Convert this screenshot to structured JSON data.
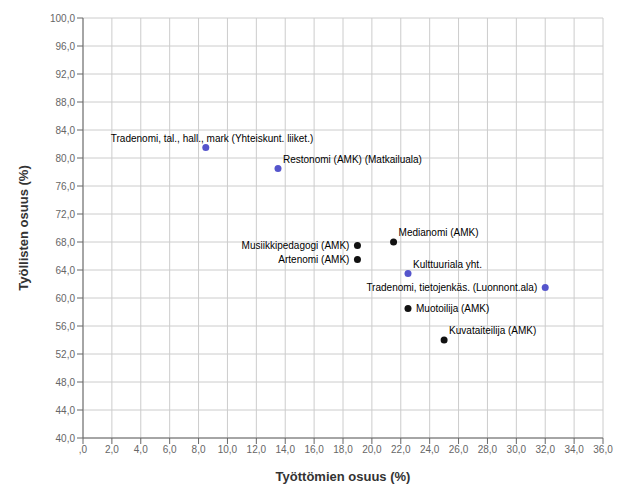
{
  "chart_data": {
    "type": "scatter",
    "x": [
      8.5,
      13.5,
      19.0,
      19.0,
      21.5,
      22.5,
      32.0,
      22.5,
      25.0
    ],
    "values": [
      81.5,
      78.5,
      67.5,
      65.5,
      68.0,
      63.5,
      61.5,
      58.5,
      54.0
    ],
    "labels": [
      "Tradenomi, tal., hall., mark (Yhteiskunt. liiket.)",
      "Restonomi (AMK) (Matkailuala)",
      "Musiikkipedagogi (AMK)",
      "Artenomi (AMK)",
      "Medianomi (AMK)",
      "Kulttuuriala yht.",
      "Tradenomi, tietojenkäs. (Luonnont.ala)",
      "Muotoilija (AMK)",
      "Kuvataiteilija (AMK)"
    ],
    "colors": [
      "#5555cc",
      "#5555cc",
      "#111111",
      "#111111",
      "#111111",
      "#5555cc",
      "#5555cc",
      "#111111",
      "#111111"
    ],
    "xlabel": "Työttömien osuus (%)",
    "ylabel": "Työllisten osuus (%)",
    "xlim": [
      0,
      36
    ],
    "ylim": [
      40,
      100
    ],
    "xticks": [
      {
        "value": 0,
        "label": ",0"
      },
      {
        "value": 2,
        "label": "2,0"
      },
      {
        "value": 4,
        "label": "4,0"
      },
      {
        "value": 6,
        "label": "6,0"
      },
      {
        "value": 8,
        "label": "8,0"
      },
      {
        "value": 10,
        "label": "10,0"
      },
      {
        "value": 12,
        "label": "12,0"
      },
      {
        "value": 14,
        "label": "14,0"
      },
      {
        "value": 16,
        "label": "16,0"
      },
      {
        "value": 18,
        "label": "18,0"
      },
      {
        "value": 20,
        "label": "20,0"
      },
      {
        "value": 22,
        "label": "22,0"
      },
      {
        "value": 24,
        "label": "24,0"
      },
      {
        "value": 26,
        "label": "26,0"
      },
      {
        "value": 28,
        "label": "28,0"
      },
      {
        "value": 30,
        "label": "30,0"
      },
      {
        "value": 32,
        "label": "32,0"
      },
      {
        "value": 34,
        "label": "34,0"
      },
      {
        "value": 36,
        "label": "36,0"
      }
    ],
    "yticks": [
      {
        "value": 40,
        "label": "40,0"
      },
      {
        "value": 44,
        "label": "44,0"
      },
      {
        "value": 48,
        "label": "48,0"
      },
      {
        "value": 52,
        "label": "52,0"
      },
      {
        "value": 56,
        "label": "56,0"
      },
      {
        "value": 60,
        "label": "60,0"
      },
      {
        "value": 64,
        "label": "64,0"
      },
      {
        "value": 68,
        "label": "68,0"
      },
      {
        "value": 72,
        "label": "72,0"
      },
      {
        "value": 76,
        "label": "76,0"
      },
      {
        "value": 80,
        "label": "80,0"
      },
      {
        "value": 84,
        "label": "84,0"
      },
      {
        "value": 88,
        "label": "88,0"
      },
      {
        "value": 92,
        "label": "92,0"
      },
      {
        "value": 96,
        "label": "96,0"
      },
      {
        "value": 100,
        "label": "100,0"
      }
    ],
    "grid": true
  }
}
